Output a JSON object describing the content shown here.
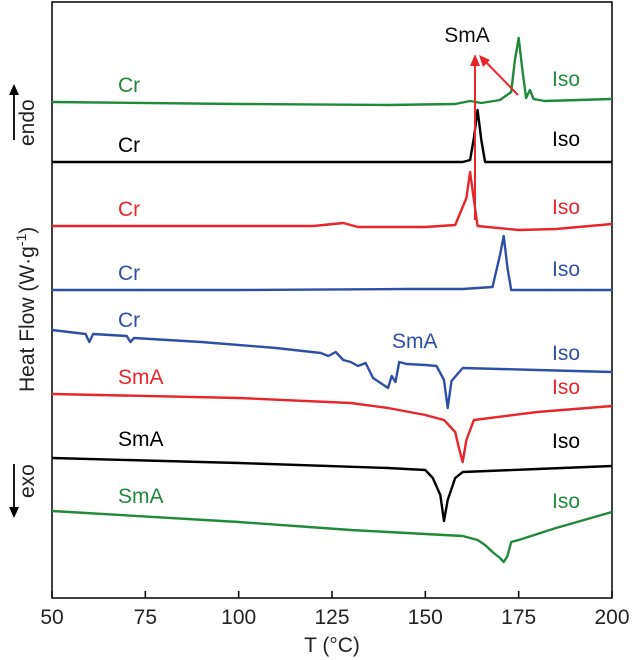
{
  "chart_data": {
    "type": "line",
    "xlabel": "T (°C)",
    "ylabel_prefix": "Heat Flow (W·g",
    "ylabel_sup": "-1",
    "ylabel_suffix": ")",
    "xlim": [
      50,
      200
    ],
    "xticks": [
      50,
      75,
      100,
      125,
      150,
      175,
      200
    ],
    "endo_label": "endo",
    "exo_label": "exo",
    "grid": false,
    "annotation": {
      "text": "SmA",
      "color": "#e8262a"
    },
    "series": [
      {
        "color": "#1f8a3a",
        "left_label": "Cr",
        "right_label": "Iso",
        "points": [
          [
            50,
            102
          ],
          [
            100,
            104
          ],
          [
            140,
            105
          ],
          [
            158,
            104
          ],
          [
            162,
            101
          ],
          [
            165,
            103
          ],
          [
            170,
            100
          ],
          [
            173,
            92
          ],
          [
            174,
            60
          ],
          [
            175,
            38
          ],
          [
            176,
            70
          ],
          [
            177,
            98
          ],
          [
            178,
            90
          ],
          [
            179,
            99
          ],
          [
            182,
            101
          ],
          [
            200,
            99
          ]
        ]
      },
      {
        "color": "#000000",
        "left_label": "Cr",
        "right_label": "Iso",
        "points": [
          [
            50,
            162
          ],
          [
            100,
            162
          ],
          [
            150,
            162
          ],
          [
            160,
            162
          ],
          [
            162,
            160
          ],
          [
            163,
            138
          ],
          [
            164,
            110
          ],
          [
            165,
            140
          ],
          [
            166,
            162
          ],
          [
            200,
            162
          ]
        ]
      },
      {
        "color": "#e8262a",
        "left_label": "Cr",
        "right_label": "Iso",
        "points": [
          [
            50,
            226
          ],
          [
            120,
            226
          ],
          [
            128,
            223
          ],
          [
            132,
            227
          ],
          [
            150,
            227
          ],
          [
            158,
            225
          ],
          [
            161,
            198
          ],
          [
            162,
            172
          ],
          [
            163,
            200
          ],
          [
            164,
            226
          ],
          [
            175,
            230
          ],
          [
            185,
            229
          ],
          [
            200,
            224
          ]
        ]
      },
      {
        "color": "#2d4fa6",
        "left_label": "Cr",
        "right_label": "Iso",
        "points": [
          [
            50,
            290
          ],
          [
            100,
            290
          ],
          [
            145,
            289
          ],
          [
            160,
            289
          ],
          [
            168,
            287
          ],
          [
            170,
            255
          ],
          [
            171,
            236
          ],
          [
            172,
            268
          ],
          [
            173,
            290
          ],
          [
            200,
            290
          ]
        ]
      },
      {
        "color": "#2d4fa6",
        "left_label": "Cr",
        "right_label": "Iso",
        "points": [
          [
            50,
            330
          ],
          [
            59,
            334
          ],
          [
            60,
            342
          ],
          [
            61,
            334
          ],
          [
            70,
            336
          ],
          [
            71,
            342
          ],
          [
            72,
            338
          ],
          [
            90,
            342
          ],
          [
            110,
            348
          ],
          [
            122,
            353
          ],
          [
            124,
            356
          ],
          [
            126,
            352
          ],
          [
            128,
            360
          ],
          [
            130,
            362
          ],
          [
            132,
            366
          ],
          [
            134,
            363
          ],
          [
            136,
            378
          ],
          [
            138,
            383
          ],
          [
            140,
            388
          ],
          [
            141,
            376
          ],
          [
            142,
            382
          ],
          [
            143,
            362
          ],
          [
            145,
            364
          ],
          [
            150,
            365
          ],
          [
            153,
            366
          ],
          [
            155,
            380
          ],
          [
            156,
            408
          ],
          [
            157,
            381
          ],
          [
            160,
            368
          ],
          [
            180,
            370
          ],
          [
            200,
            372
          ]
        ]
      },
      {
        "color": "#e8262a",
        "left_label": "SmA",
        "right_label": "Iso",
        "points": [
          [
            50,
            394
          ],
          [
            100,
            398
          ],
          [
            130,
            403
          ],
          [
            140,
            408
          ],
          [
            150,
            415
          ],
          [
            155,
            420
          ],
          [
            158,
            432
          ],
          [
            159,
            448
          ],
          [
            160,
            462
          ],
          [
            161,
            440
          ],
          [
            163,
            420
          ],
          [
            180,
            412
          ],
          [
            200,
            406
          ]
        ]
      },
      {
        "color": "#000000",
        "left_label": "SmA",
        "right_label": "Iso",
        "points": [
          [
            50,
            458
          ],
          [
            100,
            463
          ],
          [
            140,
            468
          ],
          [
            150,
            470
          ],
          [
            152,
            478
          ],
          [
            154,
            495
          ],
          [
            155,
            521
          ],
          [
            156,
            500
          ],
          [
            158,
            478
          ],
          [
            160,
            472
          ],
          [
            180,
            469
          ],
          [
            200,
            466
          ]
        ]
      },
      {
        "color": "#1f8a3a",
        "left_label": "SmA",
        "right_label": "Iso",
        "points": [
          [
            50,
            511
          ],
          [
            100,
            522
          ],
          [
            130,
            530
          ],
          [
            150,
            534
          ],
          [
            160,
            536
          ],
          [
            164,
            540
          ],
          [
            166,
            545
          ],
          [
            168,
            552
          ],
          [
            170,
            558
          ],
          [
            171,
            562
          ],
          [
            172,
            556
          ],
          [
            173,
            542
          ],
          [
            175,
            540
          ],
          [
            185,
            528
          ],
          [
            200,
            512
          ]
        ]
      }
    ]
  }
}
